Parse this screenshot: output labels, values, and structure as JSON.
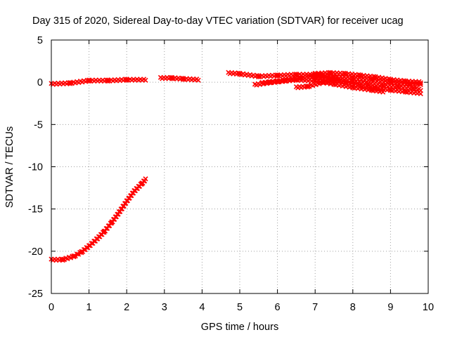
{
  "chart_data": {
    "type": "scatter",
    "title": "Day 315 of 2020, Sidereal Day-to-day VTEC variation (SDTVAR) for receiver ucag",
    "xlabel": "GPS time / hours",
    "ylabel": "SDTVAR / TECUs",
    "xlim": [
      0,
      10
    ],
    "ylim": [
      -25,
      5
    ],
    "xticks": [
      "0",
      "1",
      "2",
      "3",
      "4",
      "5",
      "6",
      "7",
      "8",
      "9",
      "10"
    ],
    "yticks": [
      "5",
      "0",
      "-5",
      "-10",
      "-15",
      "-20",
      "-25"
    ],
    "grid": true,
    "marker_color": "#ff0000",
    "series": [
      {
        "name": "rising-segment",
        "x": [
          0.0,
          0.3,
          0.6,
          0.8,
          1.0,
          1.2,
          1.4,
          1.6,
          1.8,
          2.0,
          2.2,
          2.4,
          2.5
        ],
        "y": [
          -21.0,
          -21.0,
          -20.6,
          -20.1,
          -19.4,
          -18.6,
          -17.7,
          -16.6,
          -15.4,
          -14.1,
          -12.9,
          -12.0,
          -11.5
        ]
      },
      {
        "name": "baseline-1",
        "x": [
          0.0,
          0.5,
          1.0,
          1.5,
          2.0,
          2.5
        ],
        "y": [
          -0.2,
          -0.1,
          0.2,
          0.2,
          0.3,
          0.3
        ]
      },
      {
        "name": "baseline-2",
        "x": [
          2.9,
          3.2,
          3.5,
          3.9
        ],
        "y": [
          0.5,
          0.5,
          0.4,
          0.3
        ]
      },
      {
        "name": "arc-a",
        "x": [
          4.7,
          5.0,
          5.5,
          6.0,
          6.5,
          7.0,
          7.5,
          8.0,
          8.5,
          9.0,
          9.5,
          9.8
        ],
        "y": [
          1.1,
          1.0,
          0.7,
          0.8,
          0.9,
          0.9,
          0.6,
          0.5,
          0.3,
          0.0,
          -0.2,
          -0.2
        ]
      },
      {
        "name": "arc-b",
        "x": [
          5.4,
          5.8,
          6.2,
          6.6,
          7.0,
          7.4,
          7.8,
          8.2,
          8.6,
          9.0,
          9.4,
          9.8
        ],
        "y": [
          -0.3,
          0.0,
          0.2,
          0.5,
          0.7,
          0.4,
          0.0,
          -0.4,
          -0.7,
          -0.9,
          -1.1,
          -1.3
        ]
      },
      {
        "name": "arc-c",
        "x": [
          5.6,
          6.0,
          6.5,
          7.0,
          7.5,
          8.0,
          8.5,
          8.8
        ],
        "y": [
          -0.1,
          0.1,
          0.3,
          0.2,
          -0.2,
          -0.6,
          -0.9,
          -1.1
        ]
      },
      {
        "name": "arc-d",
        "x": [
          6.5,
          6.8,
          7.2,
          7.6,
          8.0,
          8.4,
          8.8,
          9.2,
          9.6,
          9.8
        ],
        "y": [
          -0.6,
          -0.5,
          0.0,
          0.3,
          0.1,
          -0.2,
          -0.4,
          -0.5,
          -0.7,
          -0.9
        ]
      },
      {
        "name": "arc-e",
        "x": [
          7.0,
          7.4,
          7.8,
          8.2,
          8.6,
          9.0,
          9.4,
          9.8
        ],
        "y": [
          1.0,
          1.1,
          1.0,
          0.8,
          0.6,
          0.3,
          0.1,
          0.0
        ]
      }
    ]
  }
}
